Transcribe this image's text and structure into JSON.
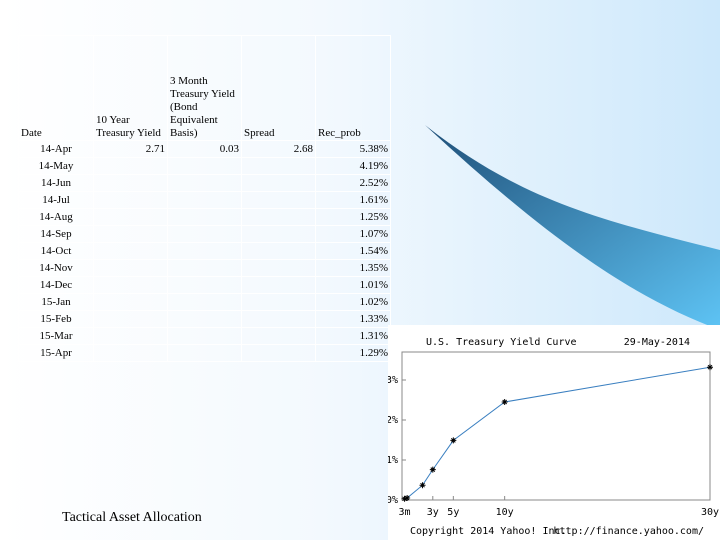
{
  "table": {
    "headers": [
      "Date",
      "10 Year Treasury Yield",
      "3 Month Treasury Yield (Bond Equivalent Basis)",
      "Spread",
      "Rec_prob"
    ],
    "rows": [
      [
        "14-Apr",
        "2.71",
        "0.03",
        "2.68",
        "5.38%"
      ],
      [
        "14-May",
        null,
        null,
        null,
        "4.19%"
      ],
      [
        "14-Jun",
        null,
        null,
        null,
        "2.52%"
      ],
      [
        "14-Jul",
        null,
        null,
        null,
        "1.61%"
      ],
      [
        "14-Aug",
        null,
        null,
        null,
        "1.25%"
      ],
      [
        "14-Sep",
        null,
        null,
        null,
        "1.07%"
      ],
      [
        "14-Oct",
        null,
        null,
        null,
        "1.54%"
      ],
      [
        "14-Nov",
        null,
        null,
        null,
        "1.35%"
      ],
      [
        "14-Dec",
        null,
        null,
        null,
        "1.01%"
      ],
      [
        "15-Jan",
        null,
        null,
        null,
        "1.02%"
      ],
      [
        "15-Feb",
        null,
        null,
        null,
        "1.33%"
      ],
      [
        "15-Mar",
        null,
        null,
        null,
        "1.31%"
      ],
      [
        "15-Apr",
        null,
        null,
        null,
        "1.29%"
      ]
    ]
  },
  "footer": "Tactical Asset Allocation",
  "chart": {
    "type": "line",
    "title": "U.S. Treasury Yield Curve",
    "date": "29-May-2014",
    "x": [
      0.25,
      0.5,
      2,
      3,
      5,
      10,
      30
    ],
    "values": [
      0.03,
      0.05,
      0.37,
      0.76,
      1.49,
      2.45,
      3.32
    ],
    "color": "#3a7fc0",
    "xlim": [
      0,
      30
    ],
    "xticks": [
      {
        "value": 0.25,
        "label": "3m"
      },
      {
        "value": 3,
        "label": "3y"
      },
      {
        "value": 5,
        "label": "5y"
      },
      {
        "value": 10,
        "label": "10y"
      },
      {
        "value": 30,
        "label": "30y"
      }
    ],
    "ylim": [
      0,
      3.7
    ],
    "yticks": [
      {
        "value": 0,
        "label": "0%"
      },
      {
        "value": 1,
        "label": "1%"
      },
      {
        "value": 2,
        "label": "2%"
      },
      {
        "value": 3,
        "label": "3%"
      }
    ],
    "copyright": "Copyright 2014 Yahoo! Inc.",
    "source": "http://finance.yahoo.com/"
  }
}
